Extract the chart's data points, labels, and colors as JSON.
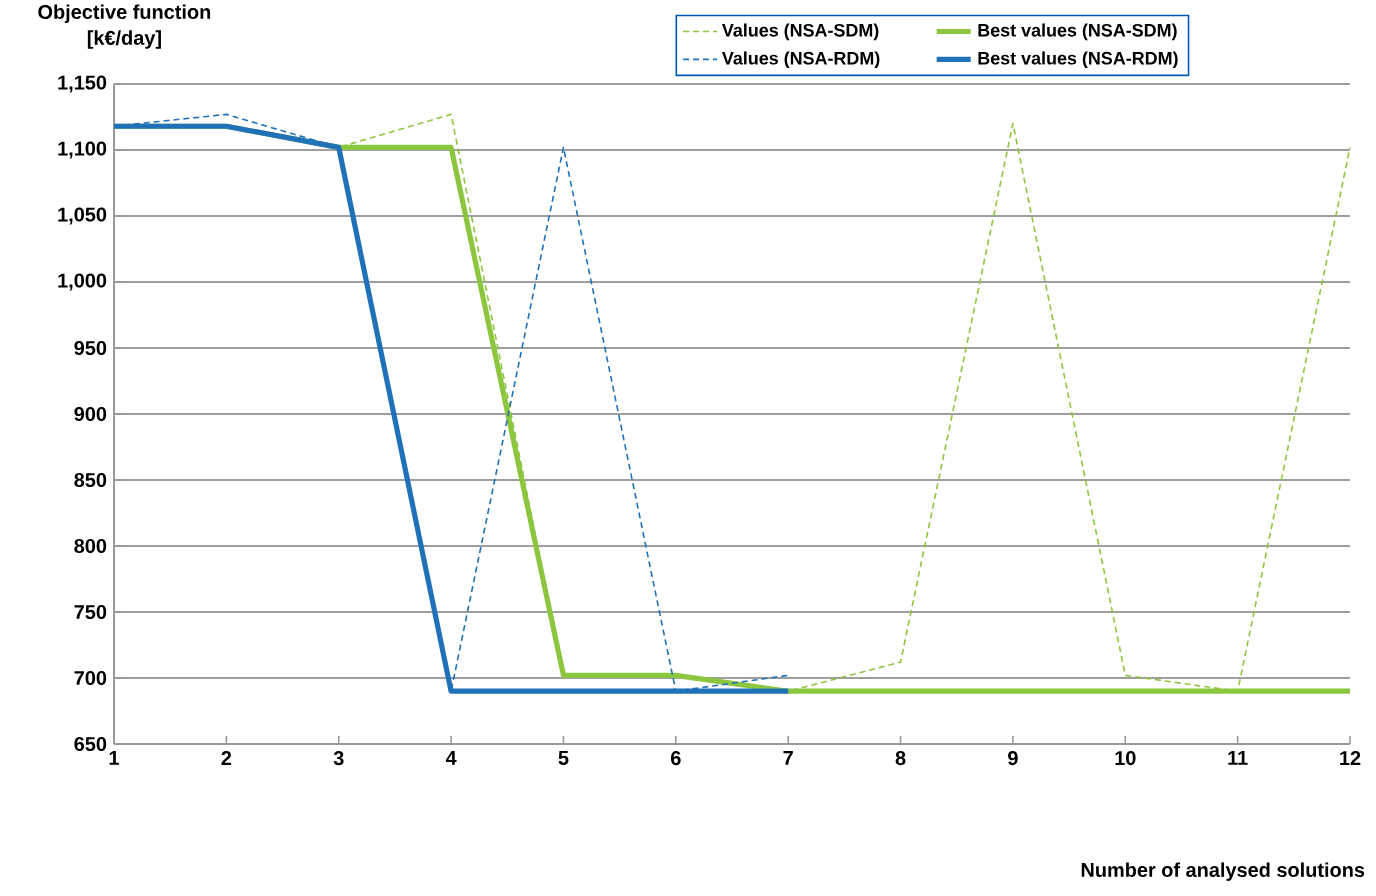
{
  "chart_data": {
    "type": "line",
    "ylabel": "Objective function\n[k€/day]",
    "xlabel": "Number of analysed solutions",
    "x": [
      1,
      2,
      3,
      4,
      5,
      6,
      7,
      8,
      9,
      10,
      11,
      12
    ],
    "series": [
      {
        "name": "Values (NSA-SDM)",
        "color": "#8cc63e",
        "line_style": "dashed",
        "values": [
          1118,
          1118,
          1102,
          1127,
          702,
          702,
          690,
          712,
          1120,
          702,
          690,
          1102
        ]
      },
      {
        "name": "Best values (NSA-SDM)",
        "color": "#8cc63e",
        "line_style": "solid",
        "values": [
          1118,
          1118,
          1102,
          1102,
          702,
          702,
          690,
          690,
          690,
          690,
          690,
          690
        ]
      },
      {
        "name": "Values (NSA-RDM)",
        "color": "#1f72b8",
        "line_style": "dashed",
        "values": [
          1118,
          1127,
          1102,
          690,
          1102,
          690,
          702,
          null,
          null,
          null,
          null,
          null
        ]
      },
      {
        "name": "Best values (NSA-RDM)",
        "color": "#1f72b8",
        "line_style": "solid",
        "values": [
          1118,
          1118,
          1102,
          690,
          690,
          690,
          690,
          null,
          null,
          null,
          null,
          null
        ]
      }
    ],
    "xlim": [
      1,
      12
    ],
    "xticks": [
      1,
      2,
      3,
      4,
      5,
      6,
      7,
      8,
      9,
      10,
      11,
      12
    ],
    "ylim": [
      650,
      1150
    ],
    "yticks": [
      {
        "value": 650,
        "label": "650"
      },
      {
        "value": 700,
        "label": "700"
      },
      {
        "value": 750,
        "label": "750"
      },
      {
        "value": 800,
        "label": "800"
      },
      {
        "value": 850,
        "label": "850"
      },
      {
        "value": 900,
        "label": "900"
      },
      {
        "value": 950,
        "label": "950"
      },
      {
        "value": 1000,
        "label": "1,000"
      },
      {
        "value": 1050,
        "label": "1,050"
      },
      {
        "value": 1100,
        "label": "1,100"
      },
      {
        "value": 1150,
        "label": "1,150"
      }
    ],
    "grid": "y",
    "legend": "top right",
    "marker": "none"
  }
}
